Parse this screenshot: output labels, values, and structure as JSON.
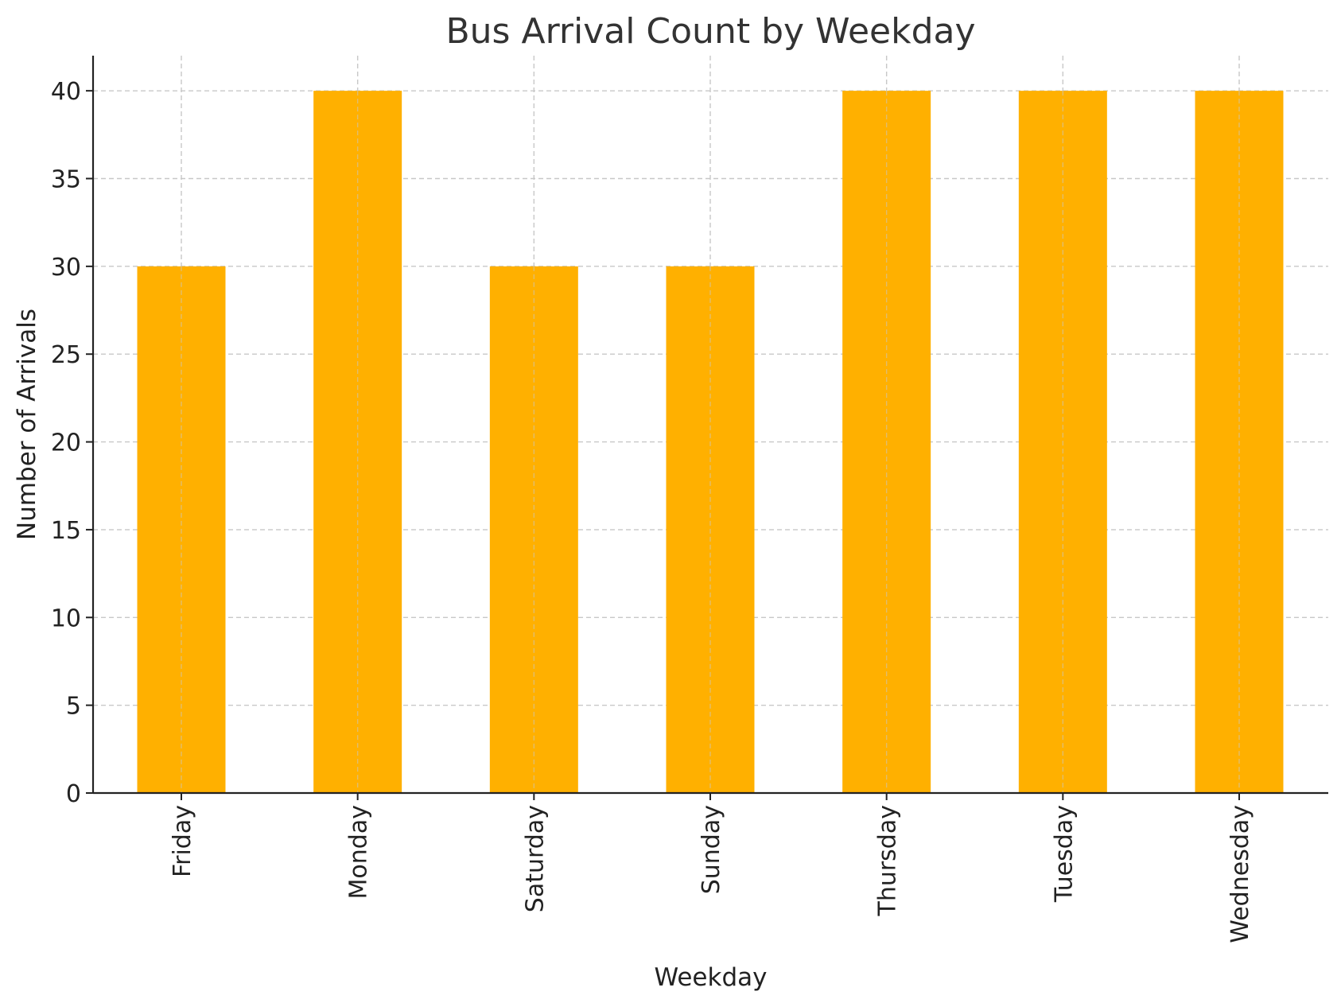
{
  "chart_data": {
    "type": "bar",
    "title": "Bus Arrival Count by Weekday",
    "xlabel": "Weekday",
    "ylabel": "Number of Arrivals",
    "categories": [
      "Friday",
      "Monday",
      "Saturday",
      "Sunday",
      "Thursday",
      "Tuesday",
      "Wednesday"
    ],
    "values": [
      30,
      40,
      30,
      30,
      40,
      40,
      40
    ],
    "ylim": [
      0,
      42
    ],
    "yticks": [
      0,
      5,
      10,
      15,
      20,
      25,
      30,
      35,
      40
    ],
    "grid": true,
    "bar_color": "#FFB000"
  }
}
